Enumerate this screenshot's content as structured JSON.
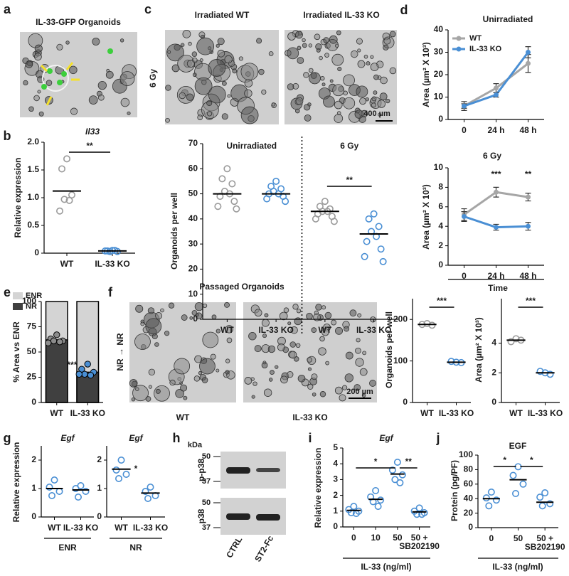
{
  "figure_images": [
    {
      "panel": "a",
      "title": "IL-33-GFP Organoids"
    },
    {
      "panel": "c",
      "titles": [
        "Irradiated WT",
        "Irradiated IL-33 KO"
      ],
      "row_label": "6 Gy",
      "scale_bar": "400 µm"
    },
    {
      "panel": "f",
      "title": "Passaged Organoids",
      "row_label": "NR → NR",
      "labels": [
        "WT",
        "IL-33 KO"
      ],
      "scale_bar": "200 µm"
    },
    {
      "panel": "h",
      "unit": "kDa",
      "markers": [
        50,
        37
      ],
      "rows": [
        "p-p38",
        "p38"
      ],
      "lanes": [
        "CTRL",
        "ST2-Fc"
      ]
    }
  ],
  "chart_data": [
    {
      "panel": "b",
      "type": "strip",
      "title": "Il33",
      "italic_title": true,
      "ylabel": "Relative expression",
      "categories": [
        "WT",
        "IL-33 KO"
      ],
      "points": [
        [
          1.7,
          1.52,
          1.05,
          0.97,
          0.95,
          0.76
        ],
        [
          0.05,
          0.04,
          0.03,
          0.03,
          0.05,
          0.04
        ]
      ],
      "means": [
        1.12,
        0.04
      ],
      "colors": [
        "#9a9a9a",
        "#4a8fd4"
      ],
      "ylim": [
        0,
        2
      ],
      "yticks": [
        0,
        0.5,
        {
          "value": 1,
          "label": "1.0"
        },
        1.5,
        {
          "value": 2,
          "label": "2.0"
        }
      ],
      "significance": [
        {
          "label": "**",
          "pair": [
            0,
            1
          ]
        }
      ]
    },
    {
      "type": "strip",
      "subtitles": [
        "Unirradiated",
        "6 Gy"
      ],
      "ylabel": "Organoids per well",
      "categories": [
        "WT",
        "IL-33 KO",
        "WT",
        "IL-33 KO"
      ],
      "points": [
        [
          60,
          56,
          54,
          51,
          50,
          49,
          47,
          45,
          44
        ],
        [
          55,
          53,
          52,
          51,
          50,
          50,
          49,
          48,
          47
        ],
        [
          47,
          45,
          44,
          43,
          43,
          42,
          41,
          40,
          39
        ],
        [
          42,
          40,
          37,
          35,
          33,
          31,
          28,
          25,
          23
        ]
      ],
      "means": [
        50,
        50,
        43,
        34
      ],
      "colors": [
        "#9a9a9a",
        "#4a8fd4",
        "#9a9a9a",
        "#4a8fd4"
      ],
      "ylim": [
        0,
        70
      ],
      "yticks": [
        0,
        10,
        20,
        30,
        40,
        50,
        60,
        70
      ],
      "significance": [
        {
          "label": "**",
          "pair": [
            2,
            3
          ]
        }
      ]
    },
    {
      "panel": "d",
      "type": "line",
      "title": "Unirradiated",
      "ylabel": "Area (µm² X 10³)",
      "categories": [
        "0",
        "24 h",
        "48 h"
      ],
      "series": [
        {
          "name": "WT",
          "color": "#a6a6a6",
          "values": [
            6,
            14,
            25
          ],
          "errors": [
            2,
            2,
            4
          ]
        },
        {
          "name": "IL-33 KO",
          "color": "#4a8fd4",
          "values": [
            6,
            11,
            30
          ],
          "errors": [
            1,
            1,
            2.5
          ]
        }
      ],
      "ylim": [
        0,
        40
      ],
      "yticks": [
        0,
        10,
        20,
        30,
        40
      ],
      "legend": "upper-left"
    },
    {
      "type": "line",
      "title": "6 Gy",
      "ylabel": "Area (µm² X 10³)",
      "xlabel": "Time",
      "categories": [
        "0",
        "24 h",
        "48 h"
      ],
      "series": [
        {
          "name": "WT",
          "color": "#a6a6a6",
          "values": [
            5.2,
            7.5,
            7.0
          ],
          "errors": [
            0.6,
            0.5,
            0.4
          ]
        },
        {
          "name": "IL-33 KO",
          "color": "#4a8fd4",
          "values": [
            5.0,
            3.9,
            4.0
          ],
          "errors": [
            0.5,
            0.3,
            0.4
          ]
        }
      ],
      "ylim": [
        0,
        10
      ],
      "yticks": [
        0,
        2,
        4,
        6,
        8,
        10
      ],
      "significance": [
        {
          "label": "***",
          "at": 1
        },
        {
          "label": "**",
          "at": 2
        }
      ]
    },
    {
      "panel": "e",
      "type": "bar",
      "ylabel": "% Area vs ENR",
      "categories": [
        "WT",
        "IL-33 KO"
      ],
      "series": [
        {
          "name": "ENR",
          "color": "#d4d4d4",
          "values": [
            100,
            100
          ]
        },
        {
          "name": "NR",
          "color": "#404040",
          "values": [
            62,
            30
          ]
        }
      ],
      "points": [
        [
          67,
          63,
          61,
          61,
          60,
          59
        ],
        [
          38,
          33,
          30,
          28,
          27,
          28
        ]
      ],
      "point_colors": [
        "#8c8c8c",
        "#4a8fd4"
      ],
      "ylim": [
        0,
        100
      ],
      "yticks": [
        0,
        25,
        50,
        75,
        100
      ],
      "legend": "top",
      "significance": [
        {
          "label": "***",
          "pair": [
            0,
            1
          ],
          "line": false
        }
      ]
    },
    {
      "type": "strip",
      "ylabel": "Organoids per well",
      "categories": [
        "WT",
        "IL-33 KO"
      ],
      "points": [
        [
          190,
          188,
          186
        ],
        [
          97,
          99,
          96
        ]
      ],
      "means": [
        188,
        97
      ],
      "colors": [
        "#9a9a9a",
        "#4a8fd4"
      ],
      "ylim": [
        0,
        250
      ],
      "yticks": [
        0,
        100,
        200
      ],
      "significance": [
        {
          "label": "***",
          "pair": [
            0,
            1
          ]
        }
      ]
    },
    {
      "type": "strip",
      "ylabel": "Area (µm² X 10³)",
      "categories": [
        "WT",
        "IL-33 KO"
      ],
      "points": [
        [
          4.3,
          4.1,
          4.2
        ],
        [
          2.0,
          2.1,
          1.9
        ]
      ],
      "means": [
        4.2,
        2.0
      ],
      "colors": [
        "#9a9a9a",
        "#4a8fd4"
      ],
      "ylim": [
        0,
        7
      ],
      "yticks": [
        0,
        2,
        4
      ],
      "significance": [
        {
          "label": "***",
          "pair": [
            0,
            1
          ]
        }
      ]
    },
    {
      "panel": "g",
      "type": "strip",
      "title": "Egf",
      "italic_title": true,
      "ylabel": "Relative expression",
      "group_label": "ENR",
      "categories": [
        "WT",
        "IL-33 KO"
      ],
      "points": [
        [
          1.3,
          1.05,
          0.9,
          0.75
        ],
        [
          1.1,
          1.0,
          0.9,
          0.7
        ]
      ],
      "means": [
        1.0,
        0.95
      ],
      "colors": [
        "#4a8fd4",
        "#4a8fd4"
      ],
      "ylim": [
        0,
        2.5
      ],
      "yticks": [
        0,
        1,
        2
      ]
    },
    {
      "type": "strip",
      "title": "Egf",
      "italic_title": true,
      "group_label": "NR",
      "categories": [
        "WT",
        "IL-33 KO"
      ],
      "points": [
        [
          2.0,
          1.65,
          1.5,
          1.35
        ],
        [
          1.05,
          0.9,
          0.75,
          0.65
        ]
      ],
      "means": [
        1.68,
        0.84
      ],
      "colors": [
        "#4a8fd4",
        "#4a8fd4"
      ],
      "ylim": [
        0,
        2.5
      ],
      "yticks": [
        0,
        1,
        2
      ],
      "significance": [
        {
          "label": "*",
          "pair": [
            0,
            1
          ],
          "line": false
        }
      ]
    },
    {
      "panel": "i",
      "type": "strip",
      "title": "Egf",
      "italic_title": true,
      "ylabel": "Relative expression",
      "xlabel": "IL-33 (ng/ml)",
      "categories": [
        "0",
        "10",
        "50",
        "50 + SB202190"
      ],
      "points": [
        [
          1.3,
          1.1,
          1.0,
          0.9,
          0.85
        ],
        [
          2.3,
          1.9,
          1.7,
          1.6,
          1.3
        ],
        [
          4.1,
          3.6,
          3.3,
          3.0,
          2.8
        ],
        [
          1.2,
          1.0,
          0.9,
          0.8,
          0.8
        ]
      ],
      "means": [
        1.05,
        1.75,
        3.35,
        0.95
      ],
      "colors": [
        "#4a8fd4",
        "#4a8fd4",
        "#4a8fd4",
        "#4a8fd4"
      ],
      "ylim": [
        0,
        5
      ],
      "yticks": [
        0,
        1,
        2,
        3,
        4,
        5
      ],
      "significance": [
        {
          "label": "*",
          "pair": [
            0,
            2
          ]
        },
        {
          "label": "**",
          "pair": [
            2,
            3
          ]
        }
      ]
    },
    {
      "panel": "j",
      "type": "strip",
      "title": "EGF",
      "ylabel": "Protein (pg/PF)",
      "xlabel": "IL-33 (ng/ml)",
      "categories": [
        "0",
        "50",
        "50 + SB202190"
      ],
      "points": [
        [
          49,
          41,
          38,
          30
        ],
        [
          84,
          72,
          60,
          47
        ],
        [
          48,
          42,
          33,
          30
        ]
      ],
      "means": [
        40,
        66,
        35
      ],
      "colors": [
        "#4a8fd4",
        "#4a8fd4",
        "#4a8fd4"
      ],
      "ylim": [
        0,
        100
      ],
      "yticks": [
        0,
        20,
        40,
        60,
        80,
        100
      ],
      "significance": [
        {
          "label": "*",
          "pair": [
            0,
            1
          ]
        },
        {
          "label": "*",
          "pair": [
            1,
            2
          ]
        }
      ]
    }
  ]
}
